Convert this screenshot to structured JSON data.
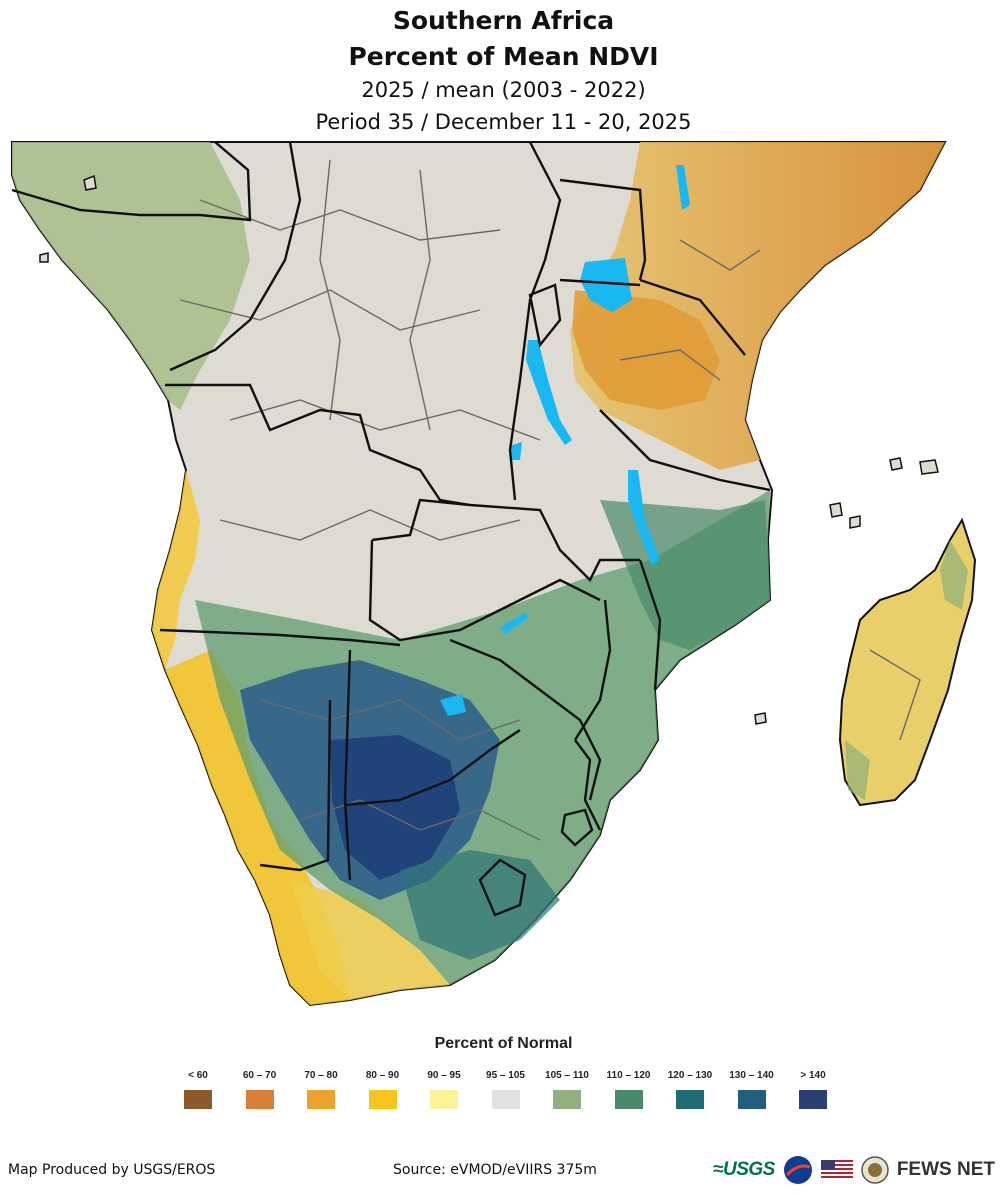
{
  "header": {
    "region": "Southern Africa",
    "product": "Percent of Mean NDVI",
    "comparison": "2025 / mean (2003 - 2022)",
    "period": "Period 35 / December 11 - 20, 2025"
  },
  "legend": {
    "title": "Percent of Normal",
    "classes": [
      {
        "label": "< 60",
        "color": "#8b5a2b"
      },
      {
        "label": "60 – 70",
        "color": "#d98038"
      },
      {
        "label": "70 – 80",
        "color": "#eaa42e"
      },
      {
        "label": "80 – 90",
        "color": "#f6c61c"
      },
      {
        "label": "90 – 95",
        "color": "#fbf29a"
      },
      {
        "label": "95 – 105",
        "color": "#e1e1e1"
      },
      {
        "label": "105 – 110",
        "color": "#93af7e"
      },
      {
        "label": "110 – 120",
        "color": "#4a8a6b"
      },
      {
        "label": "120 – 130",
        "color": "#1f6d72"
      },
      {
        "label": "130 – 140",
        "color": "#225f7e"
      },
      {
        "label": "> 140",
        "color": "#2a4070"
      }
    ]
  },
  "colors": {
    "water": "#19b8f0",
    "border": "#111111",
    "admin_border": "#6a6a6a"
  },
  "footer": {
    "credit": "Map Produced by USGS/EROS",
    "source": "Source: eVMOD/eVIIRS 375m",
    "usgs_logo": "≈USGS",
    "fews_logo": "FEWS NET"
  }
}
